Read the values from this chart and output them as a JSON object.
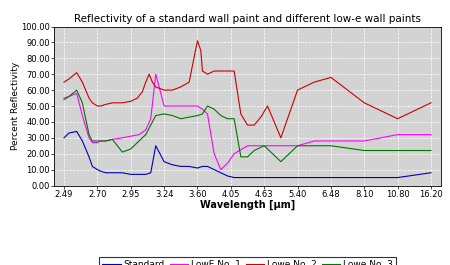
{
  "title": "Reflectivity of a standard wall paint and different low-e wall paints",
  "xlabel": "Wavelength [μm]",
  "ylabel": "Percent Reflectivity",
  "x_ticks": [
    2.49,
    2.7,
    2.95,
    3.24,
    3.6,
    4.05,
    4.63,
    5.4,
    6.48,
    8.1,
    10.8,
    16.2
  ],
  "x_tick_labels": [
    "2.49",
    "2.70",
    "2.95",
    "3.24",
    "3.60",
    "4.05",
    "4.63",
    "5.40",
    "6.48",
    "8.10",
    "10.80",
    "16.20"
  ],
  "ylim": [
    0,
    100
  ],
  "yticks": [
    0,
    10,
    20,
    30,
    40,
    50,
    60,
    70,
    80,
    90,
    100
  ],
  "ytick_labels": [
    "0.00",
    "10.00",
    "20.00",
    "30.00",
    "40.00",
    "50.00",
    "60.00",
    "70.00",
    "80.00",
    "90.00",
    "100.00"
  ],
  "background_color": "#d3d3d3",
  "legend_labels": [
    "Standard",
    "LowE No. 1",
    "Lowe No. 2",
    "Lowe No. 3"
  ],
  "line_colors": [
    "#0000bb",
    "#ff00ff",
    "#cc0000",
    "#007700"
  ],
  "standard_x": [
    0,
    0.15,
    0.38,
    0.55,
    0.75,
    0.85,
    1.0,
    1.1,
    1.25,
    1.45,
    1.75,
    2.0,
    2.25,
    2.45,
    2.6,
    2.75,
    3.0,
    3.25,
    3.5,
    3.75,
    4.0,
    4.15,
    4.3,
    4.5,
    4.7,
    4.9,
    5.1,
    5.5,
    6.0,
    6.5,
    7.0,
    7.5,
    8.0,
    9.0,
    10.0,
    11.0
  ],
  "standard_y": [
    30,
    33,
    34,
    28,
    18,
    12,
    10,
    9,
    8,
    8,
    8,
    7,
    7,
    7,
    8,
    25,
    15,
    13,
    12,
    12,
    11,
    12,
    12,
    10,
    8,
    6,
    5,
    5,
    5,
    5,
    5,
    5,
    5,
    5,
    5,
    8
  ],
  "lowe1_x": [
    0,
    0.15,
    0.38,
    0.55,
    0.75,
    0.85,
    1.0,
    1.1,
    1.25,
    1.45,
    1.75,
    2.0,
    2.25,
    2.45,
    2.6,
    2.75,
    3.0,
    3.25,
    3.5,
    3.75,
    4.0,
    4.15,
    4.3,
    4.5,
    4.7,
    4.9,
    5.1,
    5.5,
    6.0,
    6.5,
    7.0,
    7.5,
    8.0,
    9.0,
    10.0,
    11.0
  ],
  "lowe1_y": [
    55,
    56,
    58,
    44,
    30,
    27,
    27,
    28,
    28,
    29,
    30,
    31,
    32,
    35,
    42,
    70,
    50,
    50,
    50,
    50,
    50,
    48,
    45,
    20,
    10,
    14,
    20,
    25,
    25,
    25,
    25,
    28,
    28,
    28,
    32,
    32
  ],
  "lowe2_x": [
    0,
    0.15,
    0.38,
    0.55,
    0.75,
    0.85,
    1.0,
    1.1,
    1.25,
    1.45,
    1.75,
    2.0,
    2.2,
    2.35,
    2.45,
    2.55,
    2.65,
    2.75,
    3.0,
    3.25,
    3.5,
    3.75,
    4.0,
    4.1,
    4.15,
    4.3,
    4.5,
    4.7,
    4.9,
    5.1,
    5.3,
    5.5,
    5.7,
    5.9,
    6.1,
    6.5,
    7.0,
    7.5,
    8.0,
    9.0,
    10.0,
    11.0
  ],
  "lowe2_y": [
    65,
    67,
    71,
    65,
    55,
    52,
    50,
    50,
    51,
    52,
    52,
    53,
    55,
    59,
    65,
    70,
    65,
    62,
    60,
    60,
    62,
    65,
    91,
    85,
    72,
    70,
    72,
    72,
    72,
    72,
    45,
    38,
    38,
    43,
    50,
    30,
    60,
    65,
    68,
    52,
    42,
    52
  ],
  "lowe3_x": [
    0,
    0.15,
    0.38,
    0.55,
    0.75,
    0.85,
    1.0,
    1.1,
    1.25,
    1.45,
    1.75,
    2.0,
    2.25,
    2.45,
    2.6,
    2.75,
    3.0,
    3.25,
    3.5,
    3.75,
    4.0,
    4.15,
    4.3,
    4.5,
    4.7,
    4.9,
    5.1,
    5.3,
    5.5,
    5.7,
    6.0,
    6.5,
    7.0,
    7.5,
    8.0,
    9.0,
    10.0,
    11.0
  ],
  "lowe3_y": [
    54,
    56,
    60,
    52,
    32,
    28,
    28,
    28,
    28,
    29,
    21,
    23,
    28,
    32,
    38,
    44,
    45,
    44,
    42,
    43,
    44,
    45,
    50,
    48,
    44,
    42,
    42,
    18,
    18,
    22,
    25,
    15,
    25,
    25,
    25,
    22,
    22,
    22
  ]
}
